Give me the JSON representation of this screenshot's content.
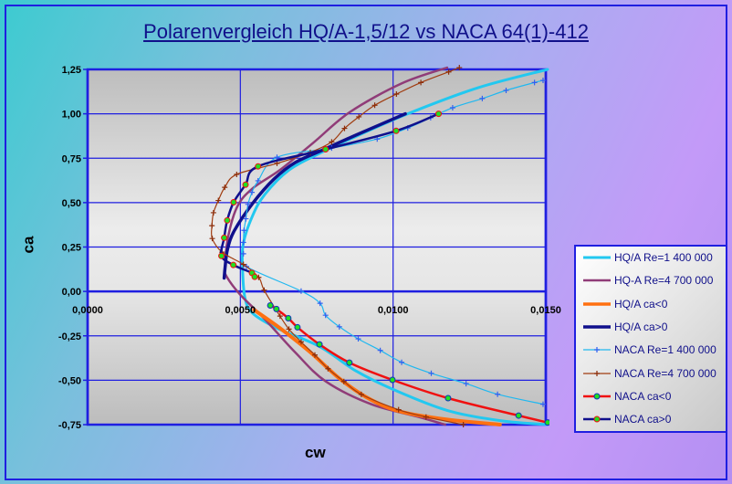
{
  "chart_data": {
    "type": "line",
    "title": "Polarenvergleich HQ/A-1,5/12 vs NACA 64(1)-412",
    "xlabel": "cw",
    "ylabel": "ca",
    "xlim": [
      0,
      0.015
    ],
    "ylim": [
      -0.75,
      1.25
    ],
    "x_ticks": [
      0,
      0.005,
      0.01,
      0.015
    ],
    "x_tick_labels": [
      "0,0000",
      "0,0050",
      "0,0100",
      "0,0150"
    ],
    "y_ticks": [
      1.25,
      1.0,
      0.75,
      0.5,
      0.25,
      0,
      -0.25,
      -0.5,
      -0.75
    ],
    "y_tick_labels": [
      "1,25",
      "1,00",
      "0,75",
      "0,50",
      "0,25",
      "0,00",
      "-0,25",
      "-0,50",
      "-0,75"
    ],
    "grid": true,
    "legend_position": "right",
    "series": [
      {
        "name": "HQ/A Re=1 400 000",
        "color": "#22c8f0",
        "width": 3,
        "marker": "none",
        "x": [
          0.01506,
          0.01277,
          0.01048,
          0.00878,
          0.00759,
          0.00659,
          0.0058,
          0.0054,
          0.0051,
          0.00507,
          0.00515,
          0.0054,
          0.0062,
          0.00759,
          0.00878,
          0.00998,
          0.01177,
          0.01357,
          0.01506
        ],
        "y": [
          1.25,
          1.146,
          1.0,
          0.872,
          0.777,
          0.683,
          0.546,
          0.426,
          0.272,
          0.135,
          -0.036,
          -0.122,
          -0.207,
          -0.31,
          -0.447,
          -0.55,
          -0.67,
          -0.729,
          -0.75
        ]
      },
      {
        "name": "HQ-A Re=4 700 000",
        "color": "#903c78",
        "width": 2.5,
        "marker": "none",
        "x": [
          0.01177,
          0.01028,
          0.00858,
          0.00739,
          0.00629,
          0.0054,
          0.0049,
          0.0046,
          0.0045,
          0.00455,
          0.005,
          0.0058,
          0.0068,
          0.0078,
          0.00928,
          0.01078,
          0.0117
        ],
        "y": [
          1.26,
          1.171,
          1.009,
          0.837,
          0.683,
          0.58,
          0.478,
          0.307,
          0.135,
          0.084,
          -0.019,
          -0.156,
          -0.344,
          -0.507,
          -0.635,
          -0.704,
          -0.75
        ]
      },
      {
        "name": "HQ/A ca<0",
        "color": "#ff7010",
        "width": 4,
        "marker": "none",
        "x": [
          0.00545,
          0.0063,
          0.0073,
          0.0083,
          0.00928,
          0.01028,
          0.01177,
          0.0135
        ],
        "y": [
          -0.104,
          -0.207,
          -0.344,
          -0.498,
          -0.61,
          -0.678,
          -0.721,
          -0.75
        ]
      },
      {
        "name": "HQ/A ca>0",
        "color": "#10108c",
        "width": 3.5,
        "marker": "none",
        "x": [
          0.0104,
          0.00878,
          0.00779,
          0.0068,
          0.0061,
          0.0054,
          0.0048,
          0.00458,
          0.0045,
          0.00447
        ],
        "y": [
          1.0,
          0.88,
          0.803,
          0.726,
          0.632,
          0.495,
          0.341,
          0.238,
          0.135,
          0.075
        ]
      },
      {
        "name": "NACA Re=1 400 000",
        "color": "#20b8f0",
        "width": 1.2,
        "marker": "plus",
        "marker_color": "#3060f0",
        "x": [
          0.01491,
          0.01463,
          0.0137,
          0.01292,
          0.01195,
          0.01123,
          0.01048,
          0.00948,
          0.00799,
          0.0062,
          0.00558,
          0.00538,
          0.00525,
          0.00518,
          0.00512,
          0.0051,
          0.0051,
          0.0052,
          0.00699,
          0.00761,
          0.00779,
          0.00824,
          0.00886,
          0.00958,
          0.01028,
          0.01125,
          0.01239,
          0.01342,
          0.01491
        ],
        "y": [
          1.188,
          1.176,
          1.132,
          1.086,
          1.034,
          0.978,
          0.92,
          0.858,
          0.807,
          0.755,
          0.623,
          0.558,
          0.49,
          0.409,
          0.344,
          0.276,
          0.212,
          0.14,
          0.002,
          -0.067,
          -0.134,
          -0.199,
          -0.267,
          -0.332,
          -0.399,
          -0.461,
          -0.519,
          -0.579,
          -0.635
        ]
      },
      {
        "name": "NACA Re=4 700 000",
        "color": "#a03c10",
        "width": 1.2,
        "marker": "plus",
        "marker_color": "#8c2c08",
        "x": [
          0.01217,
          0.01182,
          0.01091,
          0.01011,
          0.0094,
          0.00888,
          0.00841,
          0.00799,
          0.00729,
          0.0062,
          0.00488,
          0.00449,
          0.00428,
          0.00412,
          0.00407,
          0.00408,
          0.0044,
          0.0051,
          0.0056,
          0.00578,
          0.0063,
          0.00659,
          0.00699,
          0.00744,
          0.00787,
          0.00839,
          0.00896,
          0.01018,
          0.01108,
          0.0123
        ],
        "y": [
          1.26,
          1.236,
          1.176,
          1.111,
          1.048,
          0.983,
          0.918,
          0.842,
          0.783,
          0.721,
          0.659,
          0.586,
          0.512,
          0.443,
          0.37,
          0.298,
          0.221,
          0.152,
          0.079,
          0.007,
          -0.139,
          -0.212,
          -0.284,
          -0.358,
          -0.435,
          -0.507,
          -0.58,
          -0.666,
          -0.707,
          -0.75
        ]
      },
      {
        "name": "NACA ca<0",
        "color": "#f01010",
        "width": 2.5,
        "marker": "dot",
        "marker_color": "#20e020",
        "marker_edge": "#1030c0",
        "x": [
          0.00598,
          0.00618,
          0.00657,
          0.00687,
          0.00759,
          0.00857,
          0.00998,
          0.0118,
          0.01411,
          0.01506
        ],
        "y": [
          -0.079,
          -0.099,
          -0.151,
          -0.202,
          -0.298,
          -0.401,
          -0.498,
          -0.601,
          -0.699,
          -0.738
        ]
      },
      {
        "name": "NACA ca>0",
        "color": "#10108c",
        "width": 2.5,
        "marker": "dot",
        "marker_color": "#20e020",
        "marker_edge": "#f01010",
        "x": [
          0.01149,
          0.0101,
          0.00779,
          0.00558,
          0.00517,
          0.00478,
          0.00457,
          0.00447,
          0.00438,
          0.00477,
          0.00538,
          0.00547
        ],
        "y": [
          1.0,
          0.904,
          0.8,
          0.704,
          0.601,
          0.502,
          0.4,
          0.302,
          0.2,
          0.149,
          0.104,
          0.082
        ]
      }
    ]
  }
}
